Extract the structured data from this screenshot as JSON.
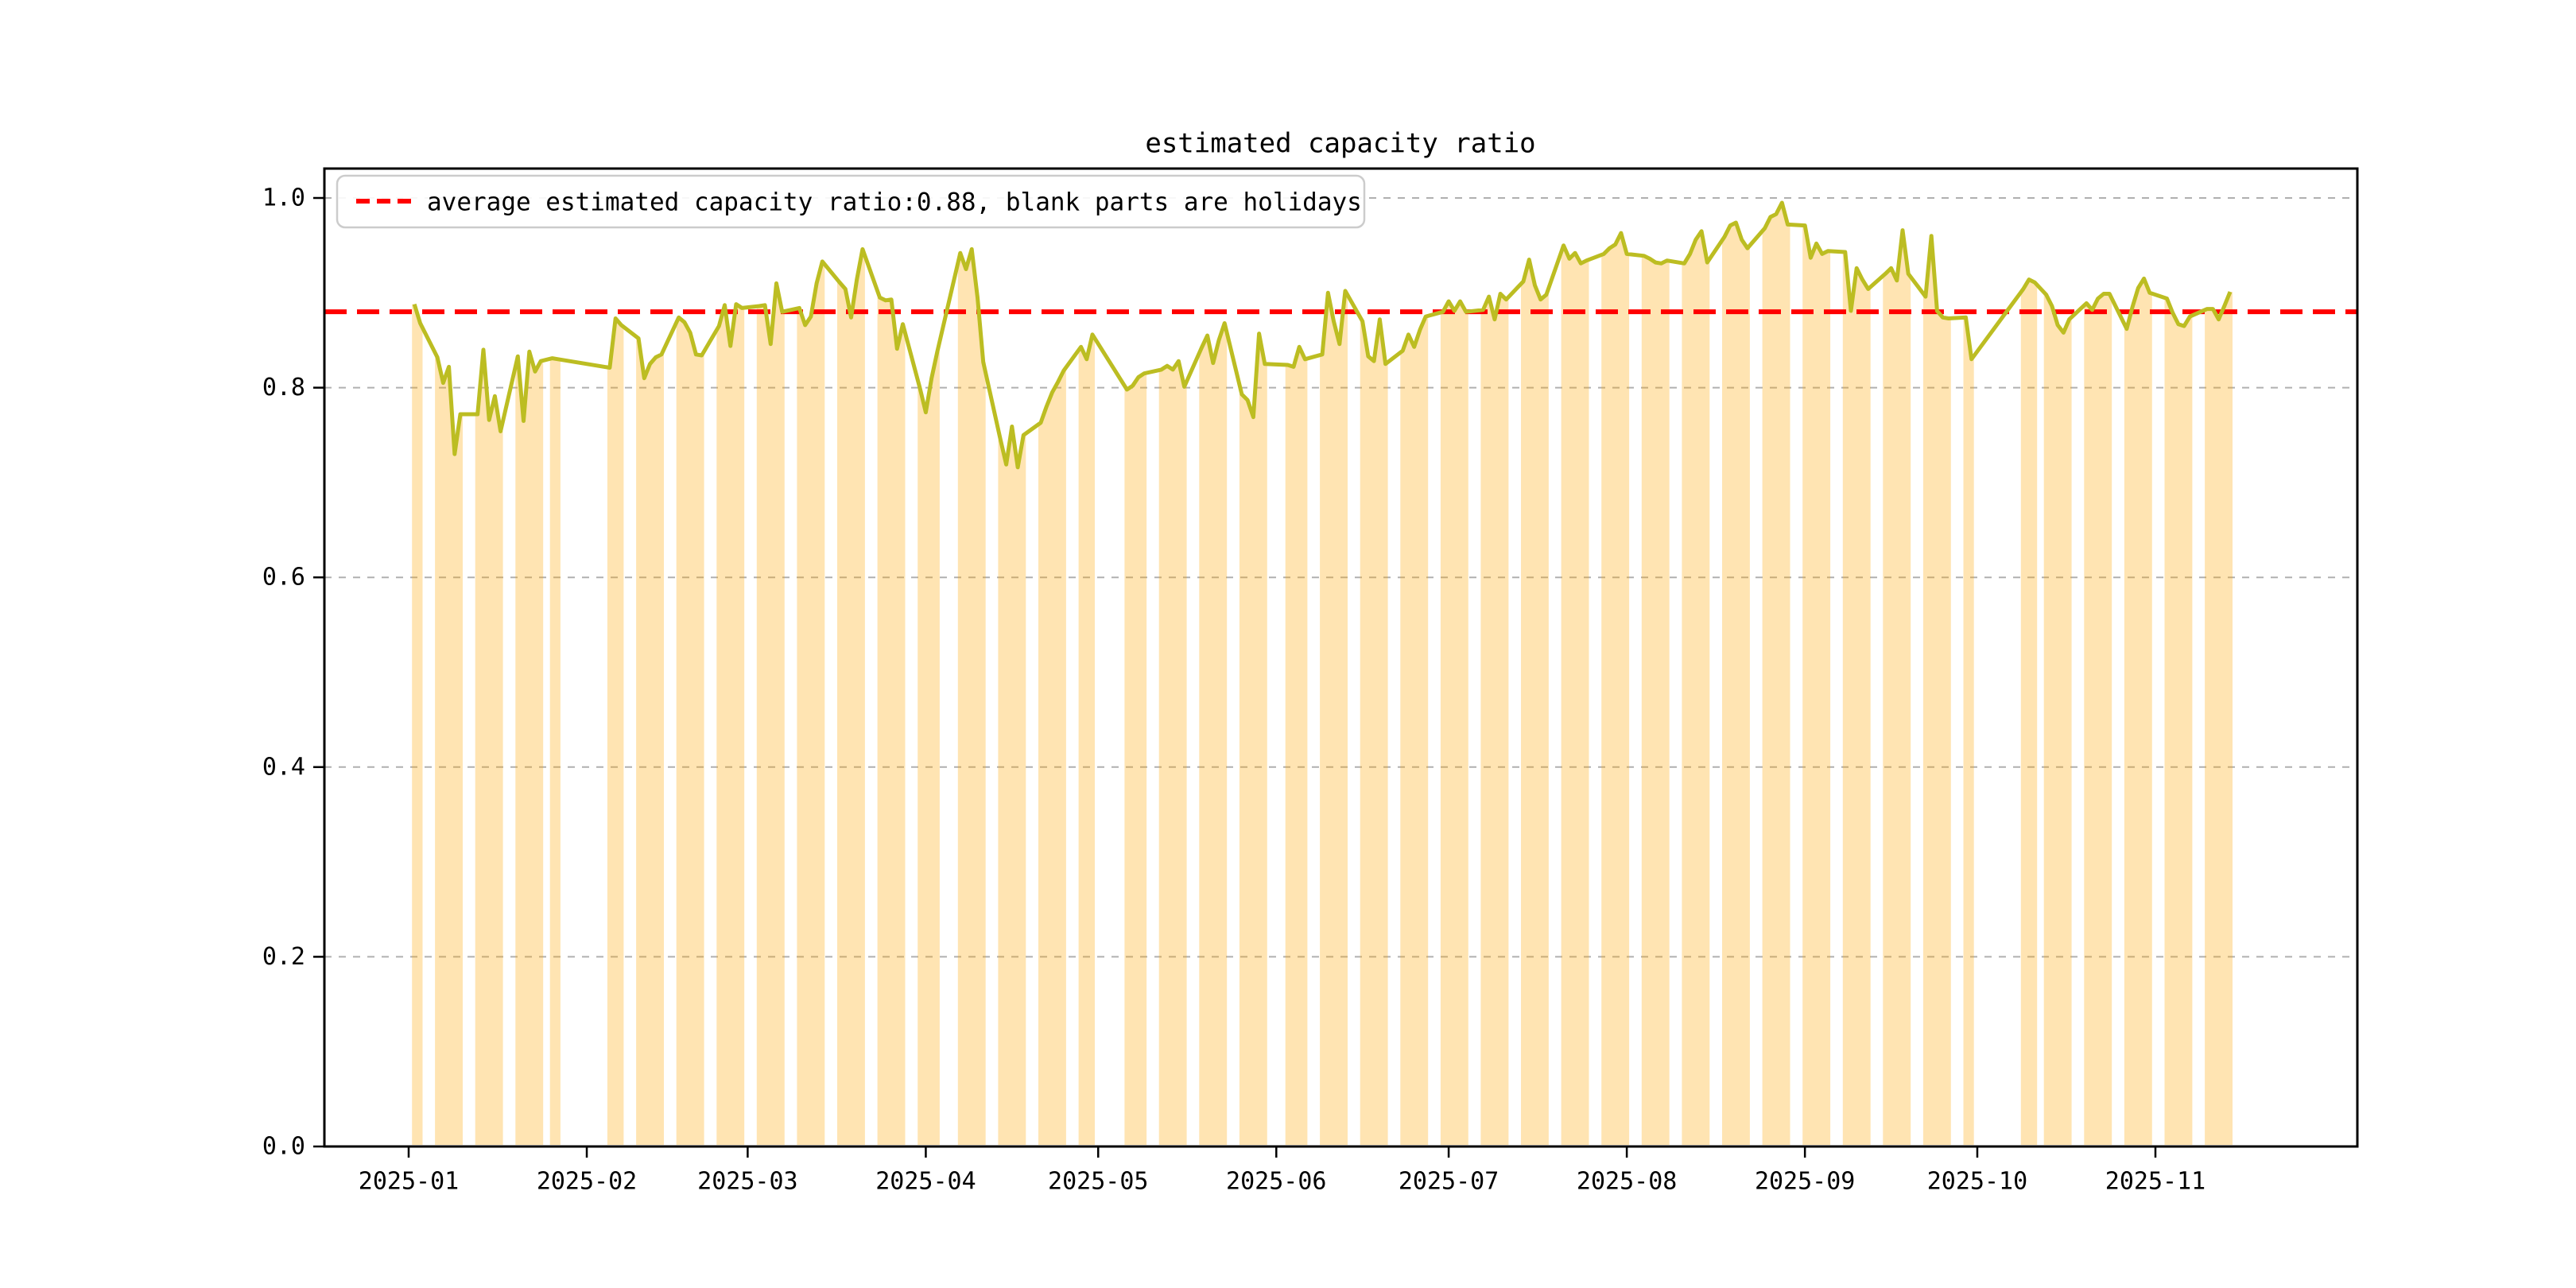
{
  "title": "estimated capacity ratio",
  "legend": {
    "label": "average estimated capacity ratio:0.88, blank parts are holidays"
  },
  "chart_data": {
    "type": "line",
    "title": "estimated capacity ratio",
    "xlabel": "",
    "ylabel": "",
    "average": 0.88,
    "ylim": [
      0.0,
      1.03
    ],
    "grid": "dashed horizontal",
    "legend_position": "upper left",
    "y_ticks": [
      0.0,
      0.2,
      0.4,
      0.6,
      0.8,
      1.0
    ],
    "x_ticks": [
      {
        "label": "2025-01",
        "day": 0
      },
      {
        "label": "2025-02",
        "day": 31
      },
      {
        "label": "2025-03",
        "day": 59
      },
      {
        "label": "2025-04",
        "day": 90
      },
      {
        "label": "2025-05",
        "day": 120
      },
      {
        "label": "2025-06",
        "day": 151
      },
      {
        "label": "2025-07",
        "day": 181
      },
      {
        "label": "2025-08",
        "day": 212
      },
      {
        "label": "2025-09",
        "day": 243
      },
      {
        "label": "2025-10",
        "day": 273
      },
      {
        "label": "2025-11",
        "day": 304
      }
    ],
    "colors": {
      "line": "#bcbd22",
      "fill": "#ffa500",
      "fill_opacity": 0.3,
      "average_line": "#ff0000",
      "grid_line": "#b0b0b0",
      "spine": "#000000"
    },
    "segments": [
      {
        "start": "2025-01-02",
        "values": [
          0.888,
          0.868
        ]
      },
      {
        "start": "2025-01-06",
        "values": [
          0.832,
          0.805,
          0.822,
          0.73,
          0.772
        ]
      },
      {
        "start": "2025-01-13",
        "values": [
          0.772,
          0.84,
          0.766,
          0.791,
          0.754
        ]
      },
      {
        "start": "2025-01-20",
        "values": [
          0.833,
          0.765,
          0.838,
          0.817,
          0.828
        ]
      },
      {
        "start": "2025-01-26",
        "values": [
          0.831,
          0.83
        ]
      },
      {
        "start": "2025-02-05",
        "values": [
          0.821,
          0.873,
          0.866
        ]
      },
      {
        "start": "2025-02-10",
        "values": [
          0.852,
          0.81,
          0.825,
          0.832,
          0.835
        ]
      },
      {
        "start": "2025-02-17",
        "values": [
          0.874,
          0.869,
          0.858,
          0.835,
          0.834
        ]
      },
      {
        "start": "2025-02-24",
        "values": [
          0.865,
          0.887,
          0.844,
          0.888,
          0.884
        ]
      },
      {
        "start": "2025-03-03",
        "values": [
          0.886,
          0.887,
          0.846,
          0.91,
          0.88
        ]
      },
      {
        "start": "2025-03-10",
        "values": [
          0.884,
          0.866,
          0.875,
          0.91,
          0.933
        ]
      },
      {
        "start": "2025-03-17",
        "values": [
          0.911,
          0.904,
          0.874,
          0.914,
          0.946
        ]
      },
      {
        "start": "2025-03-24",
        "values": [
          0.895,
          0.892,
          0.893,
          0.841,
          0.867
        ]
      },
      {
        "start": "2025-03-31",
        "values": [
          0.799,
          0.774,
          0.81,
          0.838
        ]
      },
      {
        "start": "2025-04-07",
        "values": [
          0.942,
          0.925,
          0.946,
          0.895,
          0.827
        ]
      },
      {
        "start": "2025-04-14",
        "values": [
          0.745,
          0.719,
          0.759,
          0.716,
          0.75
        ]
      },
      {
        "start": "2025-04-21",
        "values": [
          0.763,
          0.78,
          0.795,
          0.806,
          0.818
        ]
      },
      {
        "start": "2025-04-28",
        "values": [
          0.843,
          0.83,
          0.856
        ]
      },
      {
        "start": "2025-05-06",
        "values": [
          0.798,
          0.802,
          0.811,
          0.815
        ]
      },
      {
        "start": "2025-05-12",
        "values": [
          0.819,
          0.823,
          0.819,
          0.828,
          0.801
        ]
      },
      {
        "start": "2025-05-19",
        "values": [
          0.842,
          0.855,
          0.826,
          0.85,
          0.868
        ]
      },
      {
        "start": "2025-05-26",
        "values": [
          0.793,
          0.787,
          0.769,
          0.857,
          0.825
        ]
      },
      {
        "start": "2025-06-03",
        "values": [
          0.824,
          0.822,
          0.843,
          0.83
        ]
      },
      {
        "start": "2025-06-09",
        "values": [
          0.835,
          0.9,
          0.87,
          0.846,
          0.902
        ]
      },
      {
        "start": "2025-06-16",
        "values": [
          0.87,
          0.833,
          0.828,
          0.872,
          0.825
        ]
      },
      {
        "start": "2025-06-23",
        "values": [
          0.839,
          0.856,
          0.843,
          0.861,
          0.875
        ]
      },
      {
        "start": "2025-06-30",
        "values": [
          0.88,
          0.891,
          0.881,
          0.891,
          0.88
        ]
      },
      {
        "start": "2025-07-07",
        "values": [
          0.882,
          0.896,
          0.872,
          0.899,
          0.893
        ]
      },
      {
        "start": "2025-07-14",
        "values": [
          0.912,
          0.935,
          0.908,
          0.893,
          0.898
        ]
      },
      {
        "start": "2025-07-21",
        "values": [
          0.95,
          0.936,
          0.942,
          0.931,
          0.934
        ]
      },
      {
        "start": "2025-07-28",
        "values": [
          0.941,
          0.947,
          0.951,
          0.963,
          0.941
        ]
      },
      {
        "start": "2025-08-04",
        "values": [
          0.939,
          0.936,
          0.932,
          0.931,
          0.934
        ]
      },
      {
        "start": "2025-08-11",
        "values": [
          0.931,
          0.941,
          0.956,
          0.965,
          0.932
        ]
      },
      {
        "start": "2025-08-18",
        "values": [
          0.959,
          0.971,
          0.974,
          0.956,
          0.947
        ]
      },
      {
        "start": "2025-08-25",
        "values": [
          0.968,
          0.98,
          0.983,
          0.995,
          0.972
        ]
      },
      {
        "start": "2025-09-01",
        "values": [
          0.971,
          0.937,
          0.952,
          0.941,
          0.944
        ]
      },
      {
        "start": "2025-09-08",
        "values": [
          0.943,
          0.881,
          0.926,
          0.914,
          0.904
        ]
      },
      {
        "start": "2025-09-15",
        "values": [
          0.92,
          0.926,
          0.913,
          0.966,
          0.92
        ]
      },
      {
        "start": "2025-09-22",
        "values": [
          0.896,
          0.96,
          0.881,
          0.874,
          0.873
        ]
      },
      {
        "start": "2025-09-29",
        "values": [
          0.874,
          0.83
        ]
      },
      {
        "start": "2025-10-09",
        "values": [
          0.904,
          0.914,
          0.911
        ]
      },
      {
        "start": "2025-10-13",
        "values": [
          0.898,
          0.886,
          0.866,
          0.858,
          0.872
        ]
      },
      {
        "start": "2025-10-20",
        "values": [
          0.889,
          0.882,
          0.894,
          0.899,
          0.899
        ]
      },
      {
        "start": "2025-10-27",
        "values": [
          0.862,
          0.885,
          0.905,
          0.915,
          0.9
        ]
      },
      {
        "start": "2025-11-03",
        "values": [
          0.894,
          0.879,
          0.867,
          0.865,
          0.875
        ]
      },
      {
        "start": "2025-11-10",
        "values": [
          0.883,
          0.883,
          0.872,
          0.886,
          0.901
        ]
      }
    ]
  }
}
